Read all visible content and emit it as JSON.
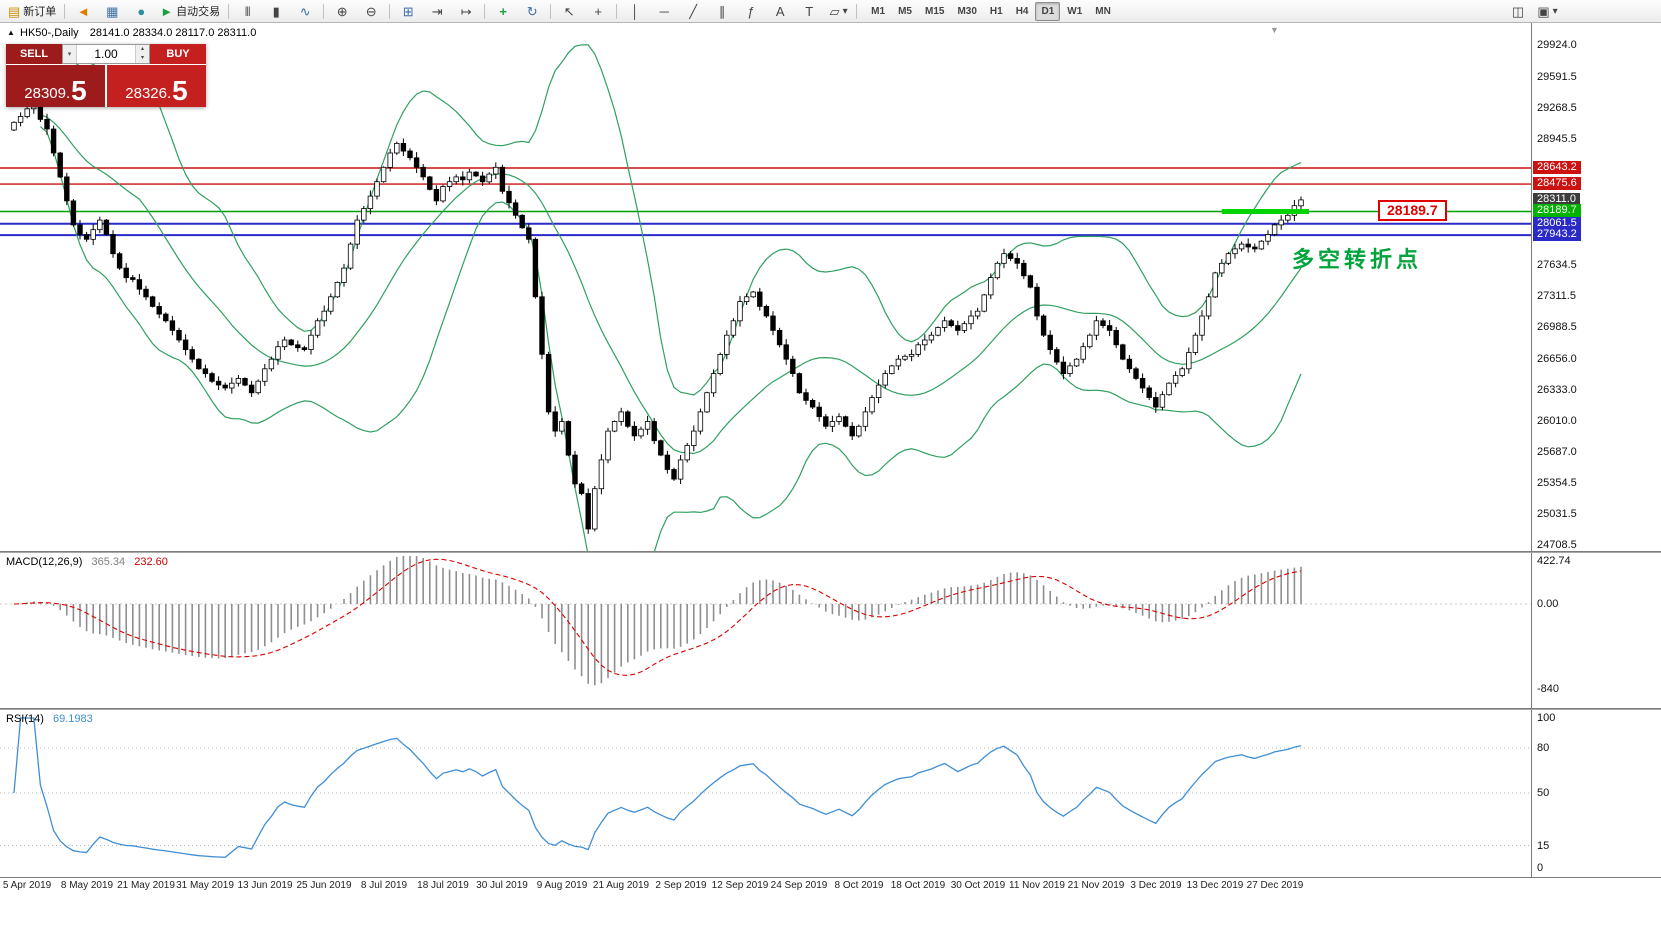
{
  "toolbar": {
    "new_order_label": "新订单",
    "autotrading_label": "自动交易",
    "timeframes": [
      "M1",
      "M5",
      "M15",
      "M30",
      "H1",
      "H4",
      "D1",
      "W1",
      "MN"
    ],
    "active_timeframe": "D1",
    "icons": {
      "new_order": "▤",
      "megaphone": "◄",
      "market_watch": "▦",
      "help": "●",
      "autotrading_play": "►",
      "bar_chart": "|||",
      "candlestick": "▮",
      "line_chart": "∿",
      "zoom_in": "⊕",
      "zoom_out": "⊖",
      "grid": "⊞",
      "auto_scroll": "⇥",
      "chart_shift": "↦",
      "indicators_add": "+",
      "refresh": "↻",
      "cursor": "↖",
      "crosshair": "+",
      "vertical_line": "│",
      "horizontal_line": "─",
      "trendline": "╱",
      "channel": "∥",
      "fibonacci": "ƒ",
      "text": "A",
      "label": "T",
      "shapes": "▱",
      "dropdown": "▾",
      "tile_windows": "◫",
      "new_chart": "▣",
      "panel_toggle": "▲",
      "scroll_marker": "▼",
      "spin_up": "▴",
      "spin_down": "▾"
    }
  },
  "chart": {
    "title": "HK50-,Daily",
    "ohlc": "28141.0 28334.0 28117.0 28311.0"
  },
  "trade_panel": {
    "sell_label": "SELL",
    "buy_label": "BUY",
    "volume": "1.00",
    "bid_small": "28309.",
    "bid_big": "5",
    "ask_small": "28326.",
    "ask_big": "5"
  },
  "annotations": {
    "turning_point_text": "多空转折点",
    "price_flag_label": "28189.7"
  },
  "price_scale": {
    "ticks": [
      29924.0,
      29591.5,
      29268.5,
      28945.5,
      27634.5,
      27311.5,
      26988.5,
      26656.0,
      26333.0,
      26010.0,
      25687.0,
      25354.5,
      25031.5,
      24708.5
    ],
    "boxes": [
      {
        "label": "28643.2",
        "price": 28643.2,
        "color": "#cc1111"
      },
      {
        "label": "28475.6",
        "price": 28475.6,
        "color": "#cc1111"
      },
      {
        "label": "28311.0",
        "price": 28311.0,
        "color": "#3c3c3c"
      },
      {
        "label": "28189.7",
        "price": 28189.7,
        "color": "#00b200"
      },
      {
        "label": "28061.5",
        "price": 28061.5,
        "color": "#2a2ac8"
      },
      {
        "label": "27943.2",
        "price": 27943.2,
        "color": "#2a2ac8"
      }
    ]
  },
  "macd": {
    "label": "MACD(12,26,9)",
    "main_value": "365.34",
    "signal_value": "232.60",
    "scale": [
      "422.74",
      "0.00",
      "-840"
    ],
    "colors": {
      "histogram": "#8f8f8f",
      "signal": "#dd0000"
    }
  },
  "rsi": {
    "label": "RSI(14)",
    "value": "69.1983",
    "scale": [
      "100",
      "80",
      "50",
      "15",
      "0"
    ],
    "level_lines": [
      80,
      50,
      15
    ],
    "color": "#3f8fd6"
  },
  "chart_data": {
    "type": "candlestick",
    "symbol": "HK50-",
    "timeframe": "Daily",
    "display_ohlc": {
      "open": 28141.0,
      "high": 28334.0,
      "low": 28117.0,
      "close": 28311.0
    },
    "price_axis_range": [
      24650,
      30155
    ],
    "bollinger": {
      "period": 20,
      "deviation": 2,
      "color": "#2fa05f"
    },
    "levels": [
      {
        "price": 28643.2,
        "color": "#cc1111",
        "width": 1.4
      },
      {
        "price": 28475.6,
        "color": "#cc1111",
        "width": 1.4
      },
      {
        "price": 28189.7,
        "color": "#00a000",
        "width": 1.4
      },
      {
        "price": 28061.5,
        "color": "#2a2ac8",
        "width": 2
      },
      {
        "price": 27943.2,
        "color": "#2a2ac8",
        "width": 2
      }
    ],
    "highlight_segment": {
      "price": 28189.7,
      "from_index": 183,
      "to_index": 195,
      "color": "#00d400"
    },
    "x_tick_first_index": 2,
    "x_tick_step": 9,
    "x_tick_dates": [
      "5 Apr 2019",
      "8 May 2019",
      "21 May 2019",
      "31 May 2019",
      "13 Jun 2019",
      "25 Jun 2019",
      "8 Jul 2019",
      "18 Jul 2019",
      "30 Jul 2019",
      "9 Aug 2019",
      "21 Aug 2019",
      "2 Sep 2019",
      "12 Sep 2019",
      "24 Sep 2019",
      "8 Oct 2019",
      "18 Oct 2019",
      "30 Oct 2019",
      "11 Nov 2019",
      "21 Nov 2019",
      "3 Dec 2019",
      "13 Dec 2019",
      "27 Dec 2019"
    ],
    "closes": [
      29120,
      29180,
      29260,
      29280,
      29150,
      29050,
      28800,
      28550,
      28300,
      28050,
      27950,
      27900,
      28000,
      28100,
      27950,
      27750,
      27600,
      27500,
      27480,
      27380,
      27300,
      27200,
      27120,
      27050,
      26950,
      26850,
      26750,
      26650,
      26550,
      26500,
      26420,
      26380,
      26350,
      26400,
      26450,
      26380,
      26300,
      26420,
      26550,
      26650,
      26780,
      26850,
      26800,
      26770,
      26750,
      26900,
      27050,
      27150,
      27300,
      27450,
      27600,
      27850,
      28100,
      28220,
      28350,
      28500,
      28650,
      28800,
      28900,
      28820,
      28750,
      28650,
      28550,
      28420,
      28300,
      28450,
      28500,
      28550,
      28520,
      28600,
      28560,
      28500,
      28580,
      28650,
      28400,
      28280,
      28150,
      28020,
      27900,
      27300,
      26700,
      26100,
      25900,
      26000,
      25650,
      25350,
      25250,
      24880,
      25300,
      25600,
      25900,
      26000,
      26100,
      25950,
      25850,
      25920,
      26000,
      25800,
      25650,
      25500,
      25400,
      25600,
      25750,
      25900,
      26100,
      26300,
      26500,
      26700,
      26900,
      27050,
      27250,
      27300,
      27350,
      27200,
      27100,
      26950,
      26800,
      26650,
      26500,
      26300,
      26220,
      26150,
      26050,
      25950,
      26000,
      26050,
      25950,
      25850,
      25950,
      26100,
      26250,
      26380,
      26500,
      26580,
      26650,
      26680,
      26700,
      26800,
      26850,
      26900,
      26980,
      27050,
      27000,
      26950,
      27020,
      27100,
      27150,
      27320,
      27500,
      27650,
      27750,
      27700,
      27650,
      27520,
      27400,
      27100,
      26900,
      26750,
      26620,
      26500,
      26580,
      26650,
      26780,
      26900,
      27050,
      27000,
      26950,
      26800,
      26650,
      26550,
      26450,
      26350,
      26250,
      26150,
      26280,
      26400,
      26480,
      26550,
      26720,
      26900,
      27100,
      27300,
      27550,
      27650,
      27750,
      27800,
      27850,
      27820,
      27800,
      27880,
      27950,
      28050,
      28100,
      28150,
      28250,
      28311
    ]
  }
}
